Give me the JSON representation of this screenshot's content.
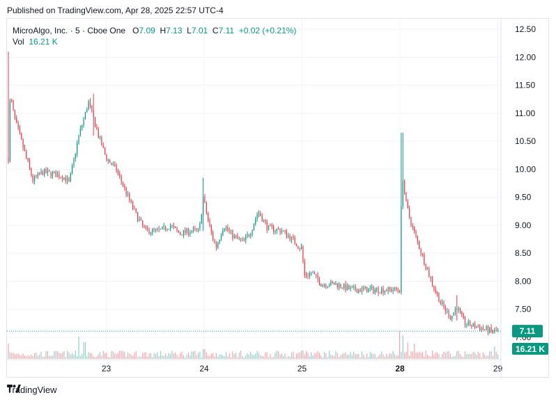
{
  "header": {
    "published": "Published on TradingView.com, Apr 28, 2025 22:57 UTC-4"
  },
  "legend": {
    "symbol": "MicroAlgo, Inc. · 5 · Cboe One",
    "o_label": "O",
    "o_value": "7.09",
    "h_label": "H",
    "h_value": "7.13",
    "l_label": "L",
    "l_value": "7.01",
    "c_label": "C",
    "c_value": "7.11",
    "change": "+0.02 (+0.21%)",
    "vol_label": "Vol",
    "vol_value": "16.21 K"
  },
  "colors": {
    "up": "#089981",
    "down": "#f23645",
    "grid": "#f0f3fa",
    "axis_text": "#131722"
  },
  "footer": {
    "brand": "TradingView",
    "logo_icon": "tradingview-logo-icon"
  },
  "chart_data": {
    "type": "candlestick",
    "timeframe": "5 min",
    "x_ticks": [
      "23",
      "24",
      "25",
      "28",
      "29"
    ],
    "y_ticks": [
      "7.00",
      "7.50",
      "8.00",
      "8.50",
      "9.00",
      "9.50",
      "10.00",
      "10.50",
      "11.00",
      "11.50",
      "12.00",
      "12.50"
    ],
    "ylim": [
      6.95,
      12.65
    ],
    "last_price": "7.11",
    "last_volume": "16.21 K",
    "price_path": [
      {
        "t": 0.0,
        "p": 10.2
      },
      {
        "t": 0.02,
        "p": 11.4
      },
      {
        "t": 0.04,
        "p": 11.1
      },
      {
        "t": 0.08,
        "p": 10.8
      },
      {
        "t": 0.15,
        "p": 10.4
      },
      {
        "t": 0.25,
        "p": 9.8
      },
      {
        "t": 0.35,
        "p": 9.95
      },
      {
        "t": 0.5,
        "p": 9.9
      },
      {
        "t": 0.58,
        "p": 9.85
      },
      {
        "t": 0.62,
        "p": 9.75
      },
      {
        "t": 0.72,
        "p": 10.6
      },
      {
        "t": 0.82,
        "p": 11.2
      },
      {
        "t": 0.92,
        "p": 10.6
      },
      {
        "t": 1.0,
        "p": 10.2
      },
      {
        "t": 1.1,
        "p": 10.0
      },
      {
        "t": 1.2,
        "p": 9.6
      },
      {
        "t": 1.3,
        "p": 9.2
      },
      {
        "t": 1.4,
        "p": 8.9
      },
      {
        "t": 1.55,
        "p": 8.9
      },
      {
        "t": 1.65,
        "p": 9.0
      },
      {
        "t": 1.75,
        "p": 8.85
      },
      {
        "t": 1.85,
        "p": 8.9
      },
      {
        "t": 1.95,
        "p": 8.9
      },
      {
        "t": 1.99,
        "p": 9.5
      },
      {
        "t": 2.05,
        "p": 9.0
      },
      {
        "t": 2.12,
        "p": 8.6
      },
      {
        "t": 2.2,
        "p": 9.0
      },
      {
        "t": 2.3,
        "p": 8.8
      },
      {
        "t": 2.4,
        "p": 8.7
      },
      {
        "t": 2.48,
        "p": 8.9
      },
      {
        "t": 2.55,
        "p": 9.25
      },
      {
        "t": 2.65,
        "p": 8.95
      },
      {
        "t": 2.8,
        "p": 8.9
      },
      {
        "t": 2.9,
        "p": 8.75
      },
      {
        "t": 2.98,
        "p": 8.6
      },
      {
        "t": 3.0,
        "p": 8.6
      },
      {
        "t": 3.02,
        "p": 8.1
      },
      {
        "t": 3.1,
        "p": 8.15
      },
      {
        "t": 3.2,
        "p": 7.95
      },
      {
        "t": 3.35,
        "p": 7.95
      },
      {
        "t": 3.5,
        "p": 7.85
      },
      {
        "t": 3.7,
        "p": 7.85
      },
      {
        "t": 3.9,
        "p": 7.85
      },
      {
        "t": 4.0,
        "p": 7.85
      },
      {
        "t": 4.02,
        "p": 10.0
      },
      {
        "t": 4.06,
        "p": 9.4
      },
      {
        "t": 4.12,
        "p": 9.0
      },
      {
        "t": 4.22,
        "p": 8.5
      },
      {
        "t": 4.32,
        "p": 8.0
      },
      {
        "t": 4.42,
        "p": 7.6
      },
      {
        "t": 4.52,
        "p": 7.35
      },
      {
        "t": 4.58,
        "p": 7.55
      },
      {
        "t": 4.66,
        "p": 7.25
      },
      {
        "t": 4.76,
        "p": 7.2
      },
      {
        "t": 4.86,
        "p": 7.15
      },
      {
        "t": 4.95,
        "p": 7.1
      },
      {
        "t": 5.0,
        "p": 7.11
      }
    ],
    "spikes": [
      {
        "t": 0.0,
        "high": 12.1,
        "low": 10.1
      },
      {
        "t": 0.87,
        "high": 11.35,
        "low": 10.6
      },
      {
        "t": 1.99,
        "high": 9.85,
        "low": 8.9
      },
      {
        "t": 4.02,
        "high": 10.65,
        "low": 9.5
      },
      {
        "t": 4.58,
        "high": 7.75,
        "low": 7.3
      }
    ],
    "volume_spikes": [
      {
        "t": 0.0,
        "v": 0.55
      },
      {
        "t": 0.72,
        "v": 0.8
      },
      {
        "t": 0.78,
        "v": 0.6
      },
      {
        "t": 2.0,
        "v": 0.35
      },
      {
        "t": 3.0,
        "v": 0.3
      },
      {
        "t": 4.0,
        "v": 1.0
      },
      {
        "t": 4.03,
        "v": 0.85
      },
      {
        "t": 4.08,
        "v": 0.6
      },
      {
        "t": 4.15,
        "v": 0.55
      },
      {
        "t": 4.97,
        "v": 0.45
      }
    ]
  }
}
